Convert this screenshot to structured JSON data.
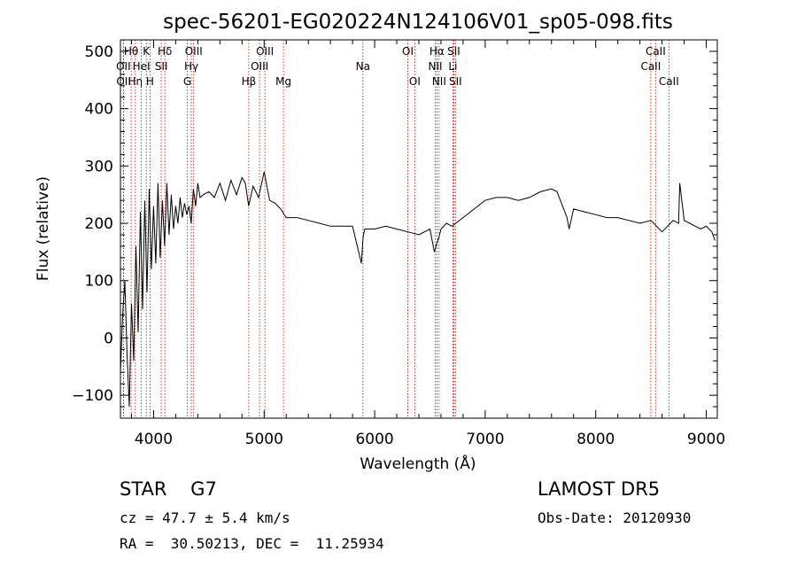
{
  "chart_data": {
    "type": "line",
    "title": "spec-56201-EG020224N124106V01_sp05-098.fits",
    "xlabel": "Wavelength (Å)",
    "ylabel": "Flux (relative)",
    "xlim": [
      3700,
      9100
    ],
    "ylim": [
      -140,
      520
    ],
    "xticks": [
      4000,
      5000,
      6000,
      7000,
      8000,
      9000
    ],
    "yticks": [
      -100,
      0,
      100,
      200,
      300,
      400,
      500
    ],
    "grid": false,
    "line_color": "#000000",
    "marker_color": "#cc0000",
    "series": [
      {
        "x": [
          3700,
          3720,
          3740,
          3760,
          3780,
          3800,
          3820,
          3840,
          3860,
          3880,
          3900,
          3920,
          3940,
          3960,
          3980,
          4000,
          4020,
          4040,
          4060,
          4080,
          4100,
          4120,
          4140,
          4160,
          4180,
          4200,
          4220,
          4240,
          4260,
          4280,
          4300,
          4320,
          4340,
          4360,
          4380,
          4400,
          4420,
          4450,
          4500,
          4550,
          4600,
          4650,
          4700,
          4750,
          4800,
          4830,
          4860,
          4900,
          4950,
          5000,
          5050,
          5100,
          5150,
          5200,
          5300,
          5400,
          5500,
          5600,
          5700,
          5800,
          5880,
          5895,
          5910,
          6000,
          6100,
          6200,
          6300,
          6400,
          6500,
          6540,
          6563,
          6580,
          6600,
          6650,
          6700,
          6800,
          6900,
          7000,
          7100,
          7200,
          7300,
          7400,
          7500,
          7600,
          7650,
          7700,
          7740,
          7760,
          7800,
          7900,
          8000,
          8100,
          8200,
          8300,
          8400,
          8500,
          8550,
          8600,
          8650,
          8700,
          8750,
          8760,
          8800,
          8850,
          8900,
          8950,
          9000,
          9050,
          9080
        ],
        "y": [
          -60,
          40,
          100,
          -30,
          -120,
          60,
          -40,
          160,
          10,
          220,
          50,
          240,
          80,
          260,
          120,
          230,
          130,
          270,
          140,
          240,
          160,
          270,
          180,
          250,
          190,
          230,
          200,
          245,
          210,
          235,
          215,
          230,
          200,
          260,
          230,
          270,
          245,
          250,
          255,
          245,
          270,
          240,
          275,
          250,
          280,
          270,
          230,
          265,
          245,
          290,
          240,
          235,
          225,
          210,
          210,
          205,
          200,
          195,
          195,
          195,
          130,
          175,
          190,
          190,
          195,
          190,
          185,
          180,
          190,
          150,
          165,
          175,
          190,
          200,
          195,
          210,
          225,
          240,
          245,
          245,
          240,
          245,
          255,
          260,
          255,
          230,
          210,
          190,
          225,
          220,
          215,
          210,
          210,
          205,
          200,
          205,
          195,
          185,
          195,
          205,
          200,
          270,
          205,
          200,
          195,
          190,
          195,
          185,
          170
        ]
      }
    ],
    "lines": [
      {
        "name": "Hθ",
        "x": 3797,
        "row": 0
      },
      {
        "name": "OII",
        "x": 3727,
        "row": 1
      },
      {
        "name": "OII",
        "x": 3729,
        "row": 2
      },
      {
        "name": "Hη",
        "x": 3835,
        "row": 2
      },
      {
        "name": "HeI",
        "x": 3889,
        "row": 1
      },
      {
        "name": "K",
        "x": 3934,
        "row": 0
      },
      {
        "name": "H",
        "x": 3968,
        "row": 2
      },
      {
        "name": "Hδ",
        "x": 4102,
        "row": 0
      },
      {
        "name": "SII",
        "x": 4069,
        "row": 1
      },
      {
        "name": "OIII",
        "x": 4363,
        "row": 0
      },
      {
        "name": "Hγ",
        "x": 4341,
        "row": 1
      },
      {
        "name": "G",
        "x": 4305,
        "row": 2
      },
      {
        "name": "OIII",
        "x": 5007,
        "row": 0
      },
      {
        "name": "OIII",
        "x": 4959,
        "row": 1
      },
      {
        "name": "Hβ",
        "x": 4861,
        "row": 2
      },
      {
        "name": "Mg",
        "x": 5175,
        "row": 2
      },
      {
        "name": "Na",
        "x": 5894,
        "row": 1
      },
      {
        "name": "OI",
        "x": 6300,
        "row": 0
      },
      {
        "name": "OI",
        "x": 6363,
        "row": 2
      },
      {
        "name": "Hα",
        "x": 6563,
        "row": 0
      },
      {
        "name": "NII",
        "x": 6548,
        "row": 1
      },
      {
        "name": "NII",
        "x": 6583,
        "row": 2
      },
      {
        "name": "SII",
        "x": 6716,
        "row": 0
      },
      {
        "name": "Li",
        "x": 6708,
        "row": 1
      },
      {
        "name": "SII",
        "x": 6731,
        "row": 2
      },
      {
        "name": "CaII",
        "x": 8542,
        "row": 0
      },
      {
        "name": "CaII",
        "x": 8498,
        "row": 1
      },
      {
        "name": "CaII",
        "x": 8662,
        "row": 2
      }
    ]
  },
  "info": {
    "class_line": "STAR    G7",
    "cz_line": "cz = 47.7 ± 5.4 km/s",
    "radec_line": "RA =  30.50213, DEC =  11.25934",
    "survey": "LAMOST DR5",
    "obs_date": "Obs-Date: 20120930"
  }
}
